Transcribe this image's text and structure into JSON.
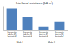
{
  "chart_data": {
    "type": "bar",
    "title": "Interfacial resistance (kΩ·m²)",
    "categories": [
      "Composite fabrics (2) laminated",
      "Composite fabrics (3) laminated",
      "Composite fabrics (2) laminated",
      "Composite fabrics (3) laminated"
    ],
    "groups": [
      "Mode I",
      "Mode I",
      "Mode II",
      "Mode II"
    ],
    "values": [
      0.9,
      0.55,
      0.15,
      0.35
    ],
    "color": "#4f81bd",
    "ylim": [
      0,
      1
    ],
    "tick_labels": "x",
    "grid": false
  }
}
